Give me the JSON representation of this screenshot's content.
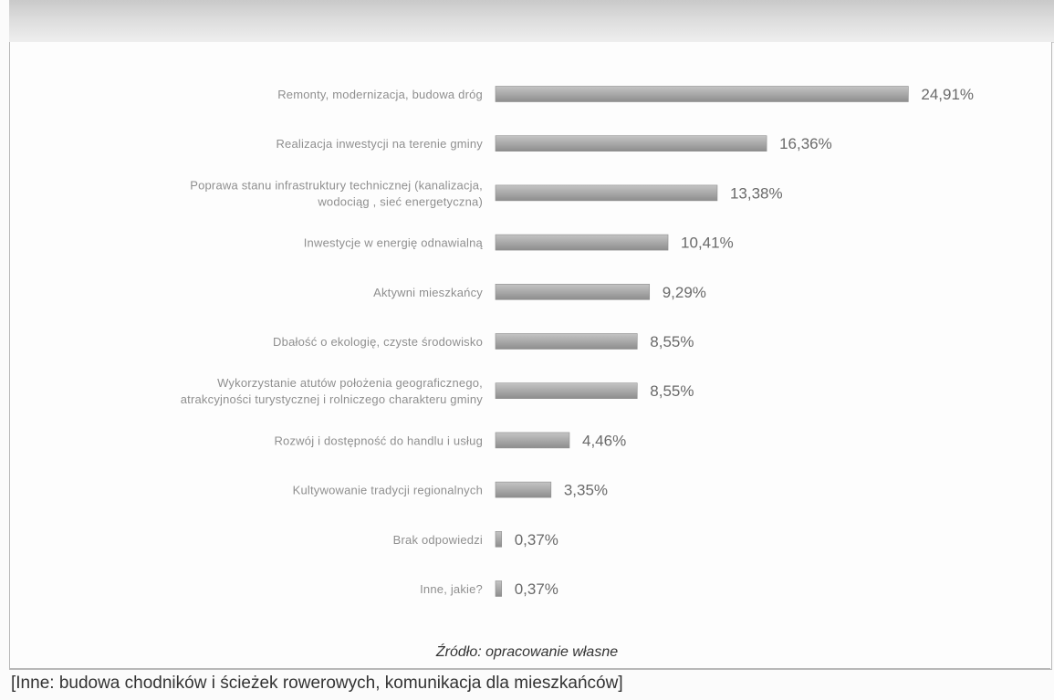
{
  "chart_data": {
    "type": "bar",
    "orientation": "horizontal",
    "categories": [
      [
        "Remonty, modernizacja, budowa dróg"
      ],
      [
        "Realizacja inwestycji na terenie gminy"
      ],
      [
        "Poprawa stanu infrastruktury technicznej (kanalizacja,",
        "wodociąg , sieć energetyczna)"
      ],
      [
        "Inwestycje w energię odnawialną"
      ],
      [
        "Aktywni mieszkańcy"
      ],
      [
        "Dbałość o ekologię, czyste środowisko"
      ],
      [
        "Wykorzystanie atutów położenia geograficznego,",
        "atrakcyjności turystycznej i rolniczego charakteru gminy"
      ],
      [
        "Rozwój i dostępność do handlu i usług"
      ],
      [
        "Kultywowanie tradycji regionalnych"
      ],
      [
        "Brak odpowiedzi"
      ],
      [
        "Inne, jakie?"
      ]
    ],
    "values": [
      24.91,
      16.36,
      13.38,
      10.41,
      9.29,
      8.55,
      8.55,
      4.46,
      3.35,
      0.37,
      0.37
    ],
    "value_labels": [
      "24,91%",
      "16,36%",
      "13,38%",
      "10,41%",
      "9,29%",
      "8,55%",
      "8,55%",
      "4,46%",
      "3,35%",
      "0,37%",
      "0,37%"
    ],
    "xlim": [
      0,
      25
    ],
    "grid": false,
    "legend": "none",
    "colors": {
      "bar": "#a9a9a9",
      "bar_edge": "#8e8e8e"
    }
  },
  "source": "Źródło: opracowanie własne",
  "note": "[Inne: budowa chodników i ścieżek rowerowych, komunikacja dla mieszkańców]"
}
